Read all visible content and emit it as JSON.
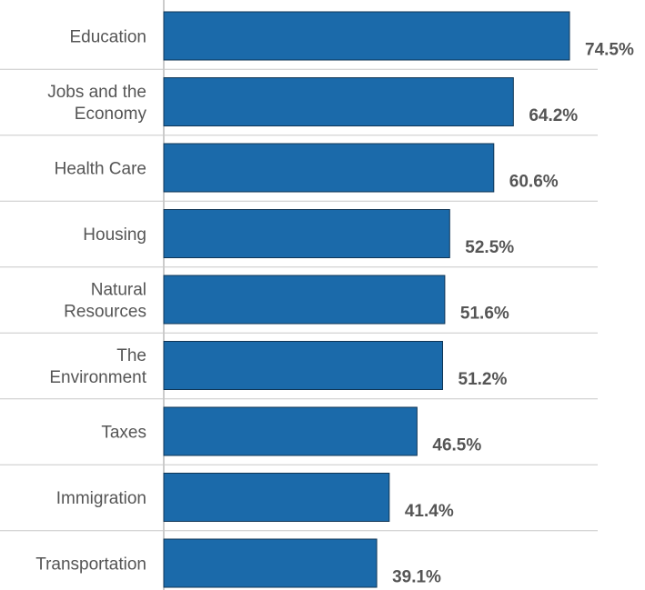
{
  "chart_data": {
    "type": "bar",
    "orientation": "horizontal",
    "categories": [
      [
        "Education"
      ],
      [
        "Jobs and the",
        "Economy"
      ],
      [
        "Health Care"
      ],
      [
        "Housing"
      ],
      [
        "Natural",
        "Resources"
      ],
      [
        "The",
        "Environment"
      ],
      [
        "Taxes"
      ],
      [
        "Immigration"
      ],
      [
        "Transportation"
      ]
    ],
    "values": [
      74.5,
      64.2,
      60.6,
      52.5,
      51.6,
      51.2,
      46.5,
      41.4,
      39.1
    ],
    "value_labels": [
      "74.5%",
      "64.2%",
      "60.6%",
      "52.5%",
      "51.6%",
      "51.2%",
      "46.5%",
      "41.4%",
      "39.1%"
    ],
    "title": "",
    "xlabel": "",
    "ylabel": "",
    "xlim": [
      0,
      74.5
    ],
    "grid": false,
    "legend": "none",
    "bar_color": "#1b6aaa",
    "bar_edge_color": "#0f3556",
    "label_color": "#555555"
  }
}
